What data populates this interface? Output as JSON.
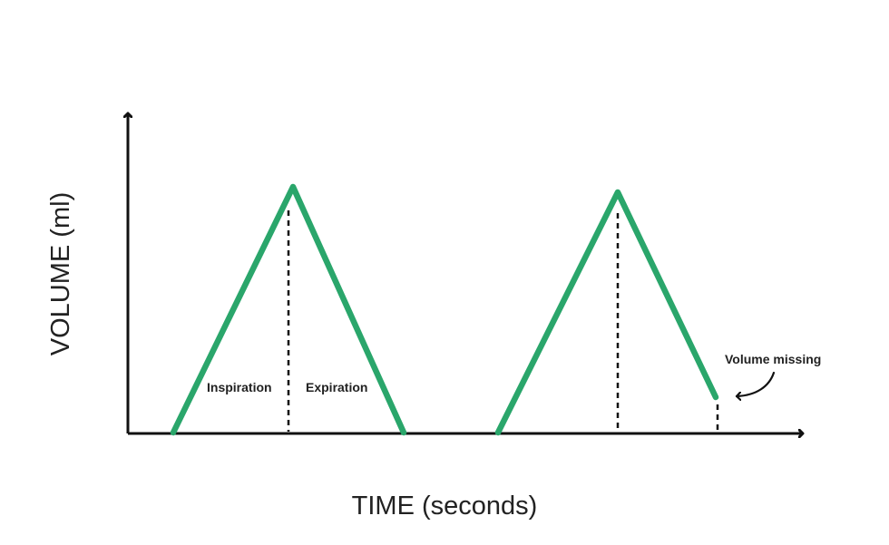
{
  "diagram": {
    "y_axis_label": "VOLUME (ml)",
    "x_axis_label": "TIME (seconds)",
    "annotations": {
      "inspiration": "Inspiration",
      "expiration": "Expiration",
      "volume_missing": "Volume missing"
    },
    "colors": {
      "trace": "#2aa66b",
      "axis": "#111111",
      "guide": "#111111",
      "text": "#222222"
    }
  }
}
